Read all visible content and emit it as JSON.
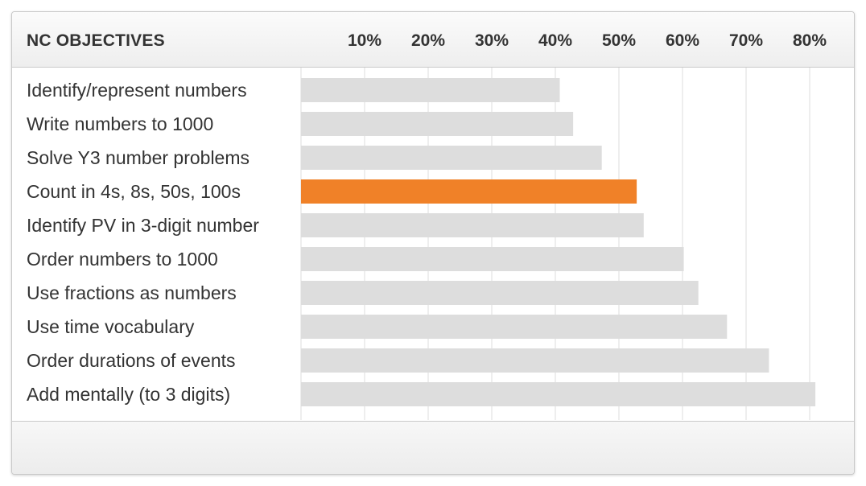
{
  "header": {
    "title": "NC OBJECTIVES"
  },
  "colors": {
    "bar": "#dddddd",
    "highlight": "#f08128",
    "grid": "#dcdcdc"
  },
  "chart_data": {
    "type": "bar",
    "orientation": "horizontal",
    "title": "",
    "xlabel": "",
    "ylabel": "NC OBJECTIVES",
    "xlim": [
      0,
      82
    ],
    "xticks": [
      10,
      20,
      30,
      40,
      50,
      60,
      70,
      80
    ],
    "tick_labels": [
      "10%",
      "20%",
      "30%",
      "40%",
      "50%",
      "60%",
      "70%",
      "80%"
    ],
    "categories": [
      "Identify/represent numbers",
      "Write numbers to 1000",
      "Solve Y3 number problems",
      "Count in 4s, 8s, 50s, 100s",
      "Identify PV in 3-digit number",
      "Order numbers to 1000",
      "Use fractions as numbers",
      "Use time vocabulary",
      "Order durations of events",
      "Add mentally (to 3 digits)"
    ],
    "values": [
      40.7,
      42.8,
      47.3,
      52.8,
      53.9,
      60.2,
      62.5,
      67.0,
      73.6,
      80.9
    ],
    "highlight_index": 3,
    "grid": true,
    "legend": "none"
  }
}
